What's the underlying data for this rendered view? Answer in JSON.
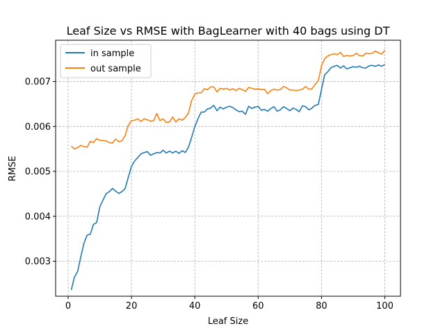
{
  "chart_data": {
    "type": "line",
    "title": "Leaf Size vs RMSE with BagLearner with 40 bags using DT",
    "xlabel": "Leaf Size",
    "ylabel": "RMSE",
    "xlim": [
      -3.95,
      104.95
    ],
    "ylim": [
      0.00222,
      0.00792
    ],
    "xticks": [
      0,
      20,
      40,
      60,
      80,
      100
    ],
    "yticks": [
      0.003,
      0.004,
      0.005,
      0.006,
      0.007
    ],
    "ytick_labels": [
      "0.003",
      "0.004",
      "0.005",
      "0.006",
      "0.007"
    ],
    "grid": true,
    "legend": "top-left",
    "x": [
      1,
      2,
      3,
      4,
      5,
      6,
      7,
      8,
      9,
      10,
      11,
      12,
      13,
      14,
      15,
      16,
      17,
      18,
      19,
      20,
      21,
      22,
      23,
      24,
      25,
      26,
      27,
      28,
      29,
      30,
      31,
      32,
      33,
      34,
      35,
      36,
      37,
      38,
      39,
      40,
      41,
      42,
      43,
      44,
      45,
      46,
      47,
      48,
      49,
      50,
      51,
      52,
      53,
      54,
      55,
      56,
      57,
      58,
      59,
      60,
      61,
      62,
      63,
      64,
      65,
      66,
      67,
      68,
      69,
      70,
      71,
      72,
      73,
      74,
      75,
      76,
      77,
      78,
      79,
      80,
      81,
      82,
      83,
      84,
      85,
      86,
      87,
      88,
      89,
      90,
      91,
      92,
      93,
      94,
      95,
      96,
      97,
      98,
      99,
      100
    ],
    "series": [
      {
        "name": "in sample",
        "color": "#1f77b4",
        "values": [
          0.00236,
          0.00265,
          0.00277,
          0.0031,
          0.0034,
          0.00358,
          0.0036,
          0.00382,
          0.00386,
          0.00421,
          0.00436,
          0.0045,
          0.00455,
          0.00462,
          0.00456,
          0.00451,
          0.00455,
          0.00462,
          0.00487,
          0.00511,
          0.00523,
          0.00531,
          0.00539,
          0.00542,
          0.00544,
          0.00536,
          0.00539,
          0.00542,
          0.00541,
          0.00547,
          0.00541,
          0.00545,
          0.00541,
          0.00545,
          0.0054,
          0.00546,
          0.00542,
          0.00554,
          0.00576,
          0.006,
          0.00617,
          0.00632,
          0.00632,
          0.00639,
          0.00641,
          0.00647,
          0.00635,
          0.00643,
          0.00639,
          0.00643,
          0.00645,
          0.00642,
          0.00637,
          0.00633,
          0.00634,
          0.00627,
          0.00645,
          0.0064,
          0.00643,
          0.00645,
          0.00636,
          0.00638,
          0.00634,
          0.0064,
          0.00644,
          0.00634,
          0.00637,
          0.00644,
          0.0064,
          0.00635,
          0.00641,
          0.00638,
          0.00633,
          0.00646,
          0.00644,
          0.00637,
          0.00641,
          0.00647,
          0.00649,
          0.00682,
          0.00715,
          0.00722,
          0.00731,
          0.00734,
          0.00736,
          0.0073,
          0.00735,
          0.00728,
          0.00731,
          0.00733,
          0.00732,
          0.00734,
          0.00731,
          0.0073,
          0.00735,
          0.00736,
          0.00734,
          0.00737,
          0.00734,
          0.00738
        ]
      },
      {
        "name": "out sample",
        "color": "#ff7f0e",
        "values": [
          0.00556,
          0.0055,
          0.00553,
          0.00558,
          0.00555,
          0.00554,
          0.00567,
          0.00564,
          0.00573,
          0.00569,
          0.00569,
          0.00568,
          0.00564,
          0.00563,
          0.00572,
          0.00566,
          0.00568,
          0.0058,
          0.00603,
          0.00613,
          0.00614,
          0.00617,
          0.00611,
          0.00617,
          0.00615,
          0.00612,
          0.00613,
          0.00629,
          0.00613,
          0.00617,
          0.00609,
          0.0061,
          0.00621,
          0.0061,
          0.00617,
          0.00614,
          0.0062,
          0.0063,
          0.00658,
          0.00672,
          0.00675,
          0.00675,
          0.00684,
          0.00682,
          0.00688,
          0.00688,
          0.00677,
          0.00685,
          0.00683,
          0.00685,
          0.00681,
          0.00684,
          0.0068,
          0.00685,
          0.00682,
          0.00678,
          0.00687,
          0.00685,
          0.00683,
          0.00684,
          0.00682,
          0.00683,
          0.00673,
          0.0068,
          0.00683,
          0.00681,
          0.00682,
          0.00689,
          0.00686,
          0.00681,
          0.00681,
          0.0068,
          0.00681,
          0.00683,
          0.00689,
          0.00683,
          0.00684,
          0.00694,
          0.00702,
          0.00735,
          0.00751,
          0.00757,
          0.0076,
          0.00762,
          0.0076,
          0.00765,
          0.00756,
          0.00758,
          0.00757,
          0.00758,
          0.00763,
          0.00758,
          0.00757,
          0.00763,
          0.00762,
          0.00763,
          0.00768,
          0.00764,
          0.00761,
          0.0077
        ]
      }
    ]
  }
}
